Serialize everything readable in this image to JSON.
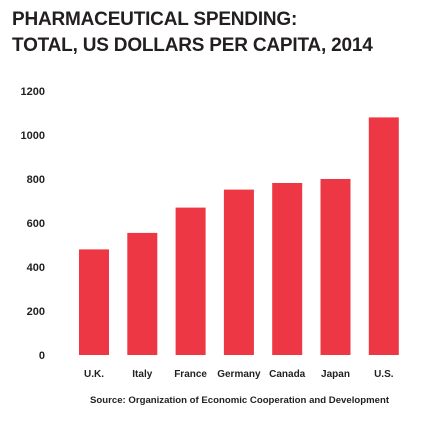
{
  "chart_data": {
    "type": "bar",
    "title_line1": "PHARMACEUTICAL SPENDING:",
    "title_line2": "TOTAL, US DOLLARS PER CAPITA, 2014",
    "xlabel": "",
    "ylabel": "",
    "categories": [
      "U.K.",
      "Italy",
      "France",
      "Germany",
      "Canada",
      "Japan",
      "U.S."
    ],
    "values": [
      480,
      555,
      670,
      752,
      782,
      800,
      1080
    ],
    "ylim": [
      0,
      1200
    ],
    "yticks": [
      0,
      200,
      400,
      600,
      800,
      1000,
      1200
    ],
    "grid": false,
    "legend": "none",
    "bar_color": "#ed3744",
    "source": "Source: Organization of Economic Cooperation and Development"
  }
}
